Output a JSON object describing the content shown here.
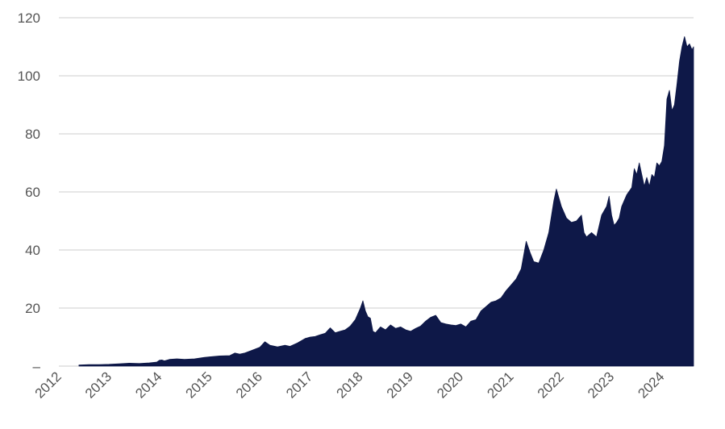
{
  "chart_data": {
    "type": "area",
    "title": "",
    "xlabel": "",
    "ylabel": "",
    "x_range": [
      2012.0,
      2024.63
    ],
    "ylim": [
      0,
      120
    ],
    "grid": "horizontal",
    "legend": "none",
    "colors": {
      "area": "#0e1848",
      "grid": "#cccccc",
      "tick": "#555555"
    },
    "x_ticks": [
      {
        "value": 2012,
        "label": "2012"
      },
      {
        "value": 2013,
        "label": "2013"
      },
      {
        "value": 2014,
        "label": "2014"
      },
      {
        "value": 2015,
        "label": "2015"
      },
      {
        "value": 2016,
        "label": "2016"
      },
      {
        "value": 2017,
        "label": "2017"
      },
      {
        "value": 2018,
        "label": "2018"
      },
      {
        "value": 2019,
        "label": "2019"
      },
      {
        "value": 2020,
        "label": "2020"
      },
      {
        "value": 2021,
        "label": "2021"
      },
      {
        "value": 2022,
        "label": "2022"
      },
      {
        "value": 2023,
        "label": "2023"
      },
      {
        "value": 2024,
        "label": "2024"
      }
    ],
    "y_ticks": [
      {
        "value": 0,
        "label": "–"
      },
      {
        "value": 20,
        "label": "20"
      },
      {
        "value": 40,
        "label": "40"
      },
      {
        "value": 60,
        "label": "60"
      },
      {
        "value": 80,
        "label": "80"
      },
      {
        "value": 100,
        "label": "100"
      },
      {
        "value": 120,
        "label": "120"
      }
    ],
    "series": [
      {
        "points": [
          [
            2012.4,
            0.4
          ],
          [
            2012.6,
            0.5
          ],
          [
            2012.8,
            0.5
          ],
          [
            2013.0,
            0.6
          ],
          [
            2013.2,
            0.8
          ],
          [
            2013.4,
            1.0
          ],
          [
            2013.6,
            0.9
          ],
          [
            2013.8,
            1.1
          ],
          [
            2013.95,
            1.4
          ],
          [
            2014.0,
            2.0
          ],
          [
            2014.05,
            2.1
          ],
          [
            2014.1,
            1.8
          ],
          [
            2014.2,
            2.3
          ],
          [
            2014.35,
            2.5
          ],
          [
            2014.5,
            2.3
          ],
          [
            2014.7,
            2.5
          ],
          [
            2014.9,
            3.0
          ],
          [
            2015.0,
            3.2
          ],
          [
            2015.2,
            3.5
          ],
          [
            2015.4,
            3.6
          ],
          [
            2015.5,
            4.5
          ],
          [
            2015.6,
            4.1
          ],
          [
            2015.7,
            4.5
          ],
          [
            2015.85,
            5.5
          ],
          [
            2016.0,
            6.5
          ],
          [
            2016.1,
            8.4
          ],
          [
            2016.2,
            7.2
          ],
          [
            2016.35,
            6.6
          ],
          [
            2016.5,
            7.2
          ],
          [
            2016.6,
            6.8
          ],
          [
            2016.75,
            8.0
          ],
          [
            2016.9,
            9.5
          ],
          [
            2017.0,
            10.0
          ],
          [
            2017.1,
            10.2
          ],
          [
            2017.2,
            10.8
          ],
          [
            2017.3,
            11.3
          ],
          [
            2017.4,
            13.2
          ],
          [
            2017.5,
            11.5
          ],
          [
            2017.6,
            12.0
          ],
          [
            2017.7,
            12.5
          ],
          [
            2017.8,
            13.8
          ],
          [
            2017.9,
            16.0
          ],
          [
            2018.0,
            20.0
          ],
          [
            2018.05,
            22.5
          ],
          [
            2018.1,
            19.0
          ],
          [
            2018.15,
            17.0
          ],
          [
            2018.2,
            16.5
          ],
          [
            2018.25,
            12.0
          ],
          [
            2018.3,
            11.5
          ],
          [
            2018.4,
            13.5
          ],
          [
            2018.5,
            12.5
          ],
          [
            2018.6,
            14.2
          ],
          [
            2018.7,
            13.0
          ],
          [
            2018.8,
            13.5
          ],
          [
            2018.9,
            12.5
          ],
          [
            2019.0,
            12.0
          ],
          [
            2019.1,
            13.0
          ],
          [
            2019.2,
            13.8
          ],
          [
            2019.3,
            15.5
          ],
          [
            2019.4,
            16.8
          ],
          [
            2019.5,
            17.5
          ],
          [
            2019.6,
            15.0
          ],
          [
            2019.7,
            14.5
          ],
          [
            2019.8,
            14.2
          ],
          [
            2019.9,
            14.0
          ],
          [
            2020.0,
            14.5
          ],
          [
            2020.1,
            13.5
          ],
          [
            2020.2,
            15.5
          ],
          [
            2020.3,
            16.0
          ],
          [
            2020.4,
            19.0
          ],
          [
            2020.5,
            20.5
          ],
          [
            2020.6,
            22.0
          ],
          [
            2020.7,
            22.5
          ],
          [
            2020.8,
            23.5
          ],
          [
            2020.9,
            26.0
          ],
          [
            2021.0,
            28.0
          ],
          [
            2021.1,
            30.0
          ],
          [
            2021.2,
            33.5
          ],
          [
            2021.3,
            43.0
          ],
          [
            2021.38,
            39.0
          ],
          [
            2021.45,
            36.0
          ],
          [
            2021.55,
            35.5
          ],
          [
            2021.65,
            40.0
          ],
          [
            2021.75,
            46.0
          ],
          [
            2021.85,
            57.0
          ],
          [
            2021.9,
            61.0
          ],
          [
            2022.0,
            55.0
          ],
          [
            2022.1,
            51.0
          ],
          [
            2022.2,
            49.5
          ],
          [
            2022.3,
            50.0
          ],
          [
            2022.4,
            52.0
          ],
          [
            2022.45,
            46.0
          ],
          [
            2022.5,
            44.5
          ],
          [
            2022.6,
            46.0
          ],
          [
            2022.7,
            44.5
          ],
          [
            2022.8,
            52.0
          ],
          [
            2022.9,
            55.0
          ],
          [
            2022.95,
            58.5
          ],
          [
            2023.0,
            52.0
          ],
          [
            2023.05,
            48.5
          ],
          [
            2023.1,
            49.5
          ],
          [
            2023.15,
            51.0
          ],
          [
            2023.2,
            55.0
          ],
          [
            2023.3,
            59.0
          ],
          [
            2023.4,
            61.5
          ],
          [
            2023.45,
            68.0
          ],
          [
            2023.5,
            66.0
          ],
          [
            2023.55,
            70.0
          ],
          [
            2023.6,
            66.0
          ],
          [
            2023.65,
            62.0
          ],
          [
            2023.7,
            65.0
          ],
          [
            2023.75,
            62.0
          ],
          [
            2023.8,
            66.0
          ],
          [
            2023.85,
            65.0
          ],
          [
            2023.9,
            70.0
          ],
          [
            2023.95,
            69.0
          ],
          [
            2024.0,
            70.5
          ],
          [
            2024.05,
            76.0
          ],
          [
            2024.1,
            92.0
          ],
          [
            2024.15,
            95.0
          ],
          [
            2024.2,
            88.0
          ],
          [
            2024.25,
            90.0
          ],
          [
            2024.3,
            97.0
          ],
          [
            2024.35,
            105.0
          ],
          [
            2024.4,
            110.0
          ],
          [
            2024.45,
            113.5
          ],
          [
            2024.5,
            110.0
          ],
          [
            2024.55,
            111.0
          ],
          [
            2024.6,
            109.0
          ],
          [
            2024.63,
            110.0
          ]
        ]
      }
    ]
  }
}
